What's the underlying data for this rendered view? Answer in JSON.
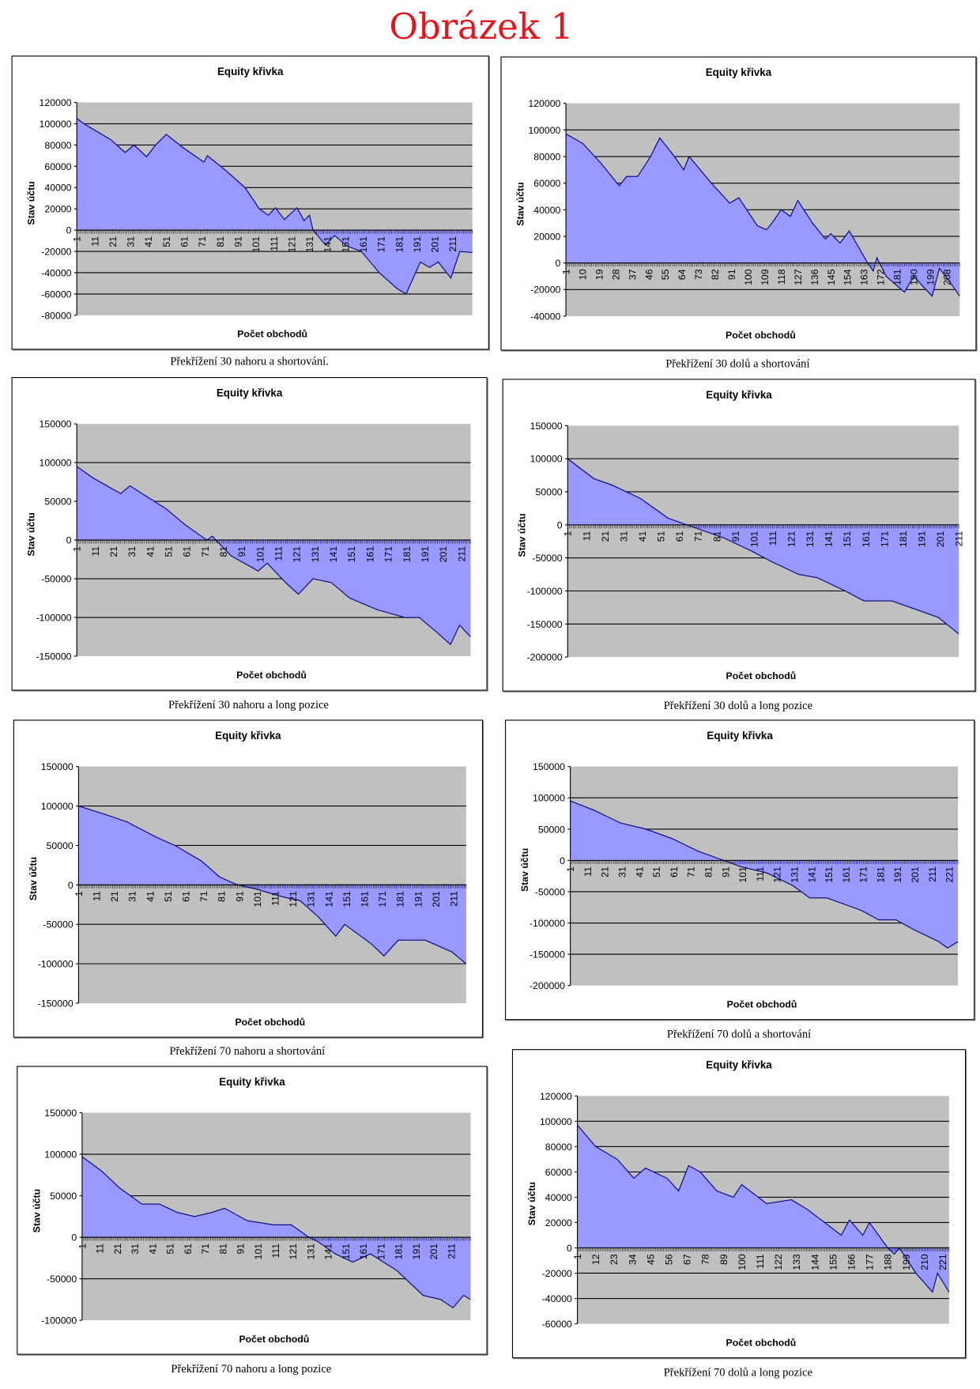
{
  "page_title": "Obrázek 1",
  "chart_data": [
    {
      "type": "area",
      "title": "Equity křivka",
      "xlabel": "Počet obchodů",
      "ylabel": "Stav účtu",
      "caption": "Překřížení 30 nahoru a shortování.",
      "ylim": [
        -80000,
        120000
      ],
      "ystep": 20000,
      "xticks": [
        1,
        11,
        21,
        31,
        41,
        51,
        61,
        71,
        81,
        91,
        101,
        111,
        121,
        131,
        141,
        151,
        161,
        171,
        181,
        191,
        201,
        211
      ],
      "series": [
        [
          1,
          105000
        ],
        [
          5,
          100000
        ],
        [
          10,
          95000
        ],
        [
          20,
          85000
        ],
        [
          28,
          73000
        ],
        [
          33,
          80000
        ],
        [
          40,
          69000
        ],
        [
          45,
          80000
        ],
        [
          51,
          90000
        ],
        [
          60,
          78000
        ],
        [
          72,
          64000
        ],
        [
          74,
          70000
        ],
        [
          85,
          55000
        ],
        [
          95,
          40000
        ],
        [
          103,
          20000
        ],
        [
          108,
          14000
        ],
        [
          112,
          21000
        ],
        [
          117,
          10000
        ],
        [
          124,
          21000
        ],
        [
          128,
          9000
        ],
        [
          131,
          14000
        ],
        [
          133,
          0
        ],
        [
          140,
          -14000
        ],
        [
          145,
          -5000
        ],
        [
          152,
          -15000
        ],
        [
          160,
          -20000
        ],
        [
          170,
          -40000
        ],
        [
          180,
          -55000
        ],
        [
          185,
          -60000
        ],
        [
          193,
          -30000
        ],
        [
          198,
          -35000
        ],
        [
          203,
          -30000
        ],
        [
          210,
          -45000
        ],
        [
          215,
          -20000
        ],
        [
          222,
          -21000
        ]
      ]
    },
    {
      "type": "area",
      "title": "Equity křivka",
      "xlabel": "Počet obchodů",
      "ylabel": "Stav účtu",
      "caption": "Překřížení 30 dolů a shortování",
      "ylim": [
        -40000,
        120000
      ],
      "ystep": 20000,
      "xticks": [
        1,
        10,
        19,
        28,
        37,
        46,
        55,
        64,
        73,
        82,
        91,
        100,
        109,
        118,
        127,
        136,
        145,
        154,
        163,
        172,
        181,
        190,
        199,
        208
      ],
      "series": [
        [
          1,
          97000
        ],
        [
          10,
          90000
        ],
        [
          20,
          75000
        ],
        [
          30,
          58000
        ],
        [
          34,
          65000
        ],
        [
          40,
          65000
        ],
        [
          47,
          80000
        ],
        [
          52,
          94000
        ],
        [
          60,
          80000
        ],
        [
          65,
          70000
        ],
        [
          68,
          80000
        ],
        [
          80,
          60000
        ],
        [
          90,
          45000
        ],
        [
          95,
          49000
        ],
        [
          105,
          28000
        ],
        [
          110,
          25000
        ],
        [
          113,
          30000
        ],
        [
          118,
          40000
        ],
        [
          123,
          35000
        ],
        [
          127,
          47000
        ],
        [
          135,
          30000
        ],
        [
          142,
          18000
        ],
        [
          145,
          22000
        ],
        [
          150,
          15000
        ],
        [
          155,
          24000
        ],
        [
          165,
          0
        ],
        [
          168,
          -6000
        ],
        [
          170,
          4000
        ],
        [
          175,
          -10000
        ],
        [
          185,
          -22000
        ],
        [
          190,
          -10000
        ],
        [
          200,
          -25000
        ],
        [
          204,
          -4000
        ],
        [
          210,
          -15000
        ],
        [
          215,
          -25000
        ]
      ]
    },
    {
      "type": "area",
      "title": "Equity křivka",
      "xlabel": "Počet obchodů",
      "ylabel": "Stav účtu",
      "caption": "Překřížení 30 nahoru a long pozice",
      "ylim": [
        -150000,
        150000
      ],
      "ystep": 50000,
      "xticks": [
        1,
        11,
        21,
        31,
        41,
        51,
        61,
        71,
        81,
        91,
        101,
        111,
        121,
        131,
        141,
        151,
        161,
        171,
        181,
        191,
        201,
        211
      ],
      "series": [
        [
          1,
          95000
        ],
        [
          10,
          80000
        ],
        [
          25,
          60000
        ],
        [
          30,
          70000
        ],
        [
          40,
          55000
        ],
        [
          50,
          40000
        ],
        [
          60,
          20000
        ],
        [
          72,
          0
        ],
        [
          75,
          5000
        ],
        [
          85,
          -20000
        ],
        [
          100,
          -40000
        ],
        [
          105,
          -30000
        ],
        [
          115,
          -55000
        ],
        [
          122,
          -70000
        ],
        [
          130,
          -50000
        ],
        [
          140,
          -55000
        ],
        [
          150,
          -75000
        ],
        [
          165,
          -90000
        ],
        [
          180,
          -100000
        ],
        [
          188,
          -100000
        ],
        [
          198,
          -120000
        ],
        [
          205,
          -135000
        ],
        [
          210,
          -110000
        ],
        [
          216,
          -125000
        ]
      ]
    },
    {
      "type": "area",
      "title": "Equity křivka",
      "xlabel": "Počet obchodů",
      "ylabel": "Stav účtu",
      "caption": "Překřížení 30 dolů a long pozice",
      "ylim": [
        -200000,
        150000
      ],
      "ystep": 50000,
      "xticks": [
        1,
        11,
        21,
        31,
        41,
        51,
        61,
        71,
        81,
        91,
        101,
        111,
        121,
        131,
        141,
        151,
        161,
        171,
        181,
        191,
        201,
        211
      ],
      "series": [
        [
          1,
          100000
        ],
        [
          15,
          70000
        ],
        [
          25,
          60000
        ],
        [
          40,
          40000
        ],
        [
          55,
          10000
        ],
        [
          65,
          0
        ],
        [
          75,
          -10000
        ],
        [
          85,
          -20000
        ],
        [
          100,
          -40000
        ],
        [
          110,
          -55000
        ],
        [
          125,
          -75000
        ],
        [
          135,
          -80000
        ],
        [
          150,
          -100000
        ],
        [
          160,
          -115000
        ],
        [
          175,
          -115000
        ],
        [
          190,
          -130000
        ],
        [
          200,
          -140000
        ],
        [
          211,
          -165000
        ]
      ]
    },
    {
      "type": "area",
      "title": "Equity křivka",
      "xlabel": "Počet obchodů",
      "ylabel": "Stav účtu",
      "caption": "Překřížení 70 nahoru a shortování",
      "ylim": [
        -150000,
        150000
      ],
      "ystep": 50000,
      "xticks": [
        1,
        11,
        21,
        31,
        41,
        51,
        61,
        71,
        81,
        91,
        101,
        111,
        121,
        131,
        141,
        151,
        161,
        171,
        181,
        191,
        201,
        211
      ],
      "series": [
        [
          1,
          100000
        ],
        [
          15,
          90000
        ],
        [
          28,
          80000
        ],
        [
          45,
          60000
        ],
        [
          55,
          50000
        ],
        [
          70,
          30000
        ],
        [
          80,
          10000
        ],
        [
          90,
          0
        ],
        [
          100,
          -5000
        ],
        [
          115,
          -15000
        ],
        [
          125,
          -20000
        ],
        [
          135,
          -40000
        ],
        [
          145,
          -65000
        ],
        [
          150,
          -50000
        ],
        [
          165,
          -75000
        ],
        [
          172,
          -90000
        ],
        [
          180,
          -70000
        ],
        [
          195,
          -70000
        ],
        [
          210,
          -85000
        ],
        [
          218,
          -100000
        ]
      ]
    },
    {
      "type": "area",
      "title": "Equity křivka",
      "xlabel": "Počet obchodů",
      "ylabel": "Stav účtu",
      "caption": "Překřížení 70 dolů a shortování",
      "ylim": [
        -200000,
        150000
      ],
      "ystep": 50000,
      "xticks": [
        1,
        11,
        21,
        31,
        41,
        51,
        61,
        71,
        81,
        91,
        101,
        111,
        121,
        131,
        141,
        151,
        161,
        171,
        181,
        191,
        201,
        211,
        221
      ],
      "series": [
        [
          1,
          95000
        ],
        [
          15,
          80000
        ],
        [
          30,
          60000
        ],
        [
          45,
          50000
        ],
        [
          60,
          35000
        ],
        [
          75,
          15000
        ],
        [
          90,
          0
        ],
        [
          100,
          -10000
        ],
        [
          115,
          -20000
        ],
        [
          130,
          -40000
        ],
        [
          140,
          -60000
        ],
        [
          150,
          -60000
        ],
        [
          160,
          -70000
        ],
        [
          170,
          -80000
        ],
        [
          180,
          -95000
        ],
        [
          190,
          -95000
        ],
        [
          200,
          -110000
        ],
        [
          215,
          -130000
        ],
        [
          220,
          -140000
        ],
        [
          226,
          -130000
        ]
      ]
    },
    {
      "type": "area",
      "title": "Equity křivka",
      "xlabel": "Počet obchodů",
      "ylabel": "Stav účtu",
      "caption": "Překřížení 70 nahoru a long pozice",
      "ylim": [
        -100000,
        150000
      ],
      "ystep": 50000,
      "xticks": [
        1,
        11,
        21,
        31,
        41,
        51,
        61,
        71,
        81,
        91,
        101,
        111,
        121,
        131,
        141,
        151,
        161,
        171,
        181,
        191,
        201,
        211
      ],
      "series": [
        [
          1,
          97000
        ],
        [
          12,
          80000
        ],
        [
          22,
          60000
        ],
        [
          35,
          40000
        ],
        [
          45,
          40000
        ],
        [
          55,
          30000
        ],
        [
          65,
          25000
        ],
        [
          75,
          30000
        ],
        [
          82,
          35000
        ],
        [
          95,
          20000
        ],
        [
          110,
          15000
        ],
        [
          120,
          15000
        ],
        [
          130,
          0
        ],
        [
          135,
          -5000
        ],
        [
          145,
          -20000
        ],
        [
          155,
          -30000
        ],
        [
          165,
          -20000
        ],
        [
          180,
          -40000
        ],
        [
          190,
          -60000
        ],
        [
          195,
          -70000
        ],
        [
          205,
          -75000
        ],
        [
          212,
          -85000
        ],
        [
          218,
          -70000
        ],
        [
          222,
          -75000
        ]
      ]
    },
    {
      "type": "area",
      "title": "Equity křivka",
      "xlabel": "Počet obchodů",
      "ylabel": "Stav účtu",
      "caption": "Překřížení 70 dolů a long pozice",
      "ylim": [
        -60000,
        120000
      ],
      "ystep": 20000,
      "xticks": [
        1,
        12,
        23,
        34,
        45,
        56,
        67,
        78,
        89,
        100,
        111,
        122,
        133,
        144,
        155,
        166,
        177,
        188,
        199,
        210,
        221
      ],
      "series": [
        [
          1,
          97000
        ],
        [
          12,
          80000
        ],
        [
          25,
          70000
        ],
        [
          35,
          55000
        ],
        [
          42,
          63000
        ],
        [
          55,
          55000
        ],
        [
          62,
          45000
        ],
        [
          68,
          65000
        ],
        [
          75,
          60000
        ],
        [
          85,
          45000
        ],
        [
          95,
          40000
        ],
        [
          100,
          50000
        ],
        [
          115,
          35000
        ],
        [
          130,
          38000
        ],
        [
          140,
          30000
        ],
        [
          150,
          20000
        ],
        [
          160,
          10000
        ],
        [
          165,
          22000
        ],
        [
          173,
          10000
        ],
        [
          177,
          20000
        ],
        [
          188,
          0
        ],
        [
          192,
          -5000
        ],
        [
          195,
          0
        ],
        [
          205,
          -20000
        ],
        [
          215,
          -35000
        ],
        [
          218,
          -20000
        ],
        [
          225,
          -35000
        ]
      ]
    }
  ]
}
